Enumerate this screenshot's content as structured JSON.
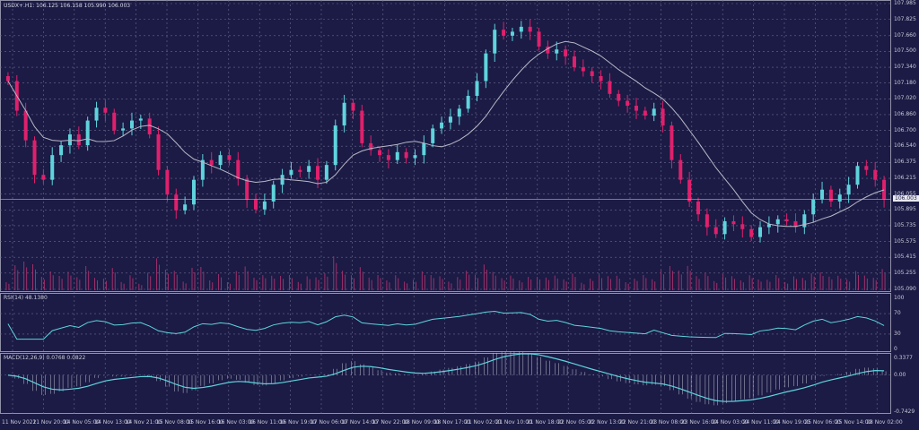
{
  "header": {
    "title": "USDX+.H1: 106.125 106.158 105.990 106.003"
  },
  "colors": {
    "background": "#1b1b45",
    "bull": "#5fd3dc",
    "bear": "#e0206c",
    "grid": "#6a6a90",
    "ma": "#b8b8c8",
    "indicator": "#5fd3dc"
  },
  "chart_data": [
    {
      "type": "candlestick",
      "symbol": "USDX+",
      "timeframe": "H1",
      "current_price": "106.003",
      "ylim": [
        105.09,
        107.985
      ],
      "y_ticks": [
        "107.985",
        "107.825",
        "107.660",
        "107.500",
        "107.340",
        "107.180",
        "107.020",
        "106.860",
        "106.700",
        "106.540",
        "106.375",
        "106.215",
        "106.055",
        "105.895",
        "105.735",
        "105.575",
        "105.415",
        "105.255",
        "105.090"
      ],
      "x_ticks": [
        "11 Nov 2022",
        "11 Nov 20:00",
        "14 Nov 05:00",
        "14 Nov 13:00",
        "14 Nov 21:00",
        "15 Nov 08:00",
        "15 Nov 16:00",
        "16 Nov 03:00",
        "16 Nov 11:00",
        "16 Nov 19:00",
        "17 Nov 06:00",
        "17 Nov 14:00",
        "17 Nov 22:00",
        "18 Nov 09:00",
        "18 Nov 17:00",
        "21 Nov 02:00",
        "21 Nov 10:00",
        "21 Nov 18:00",
        "22 Nov 05:00",
        "22 Nov 13:00",
        "22 Nov 21:00",
        "23 Nov 08:00",
        "23 Nov 16:00",
        "24 Nov 03:00",
        "24 Nov 11:00",
        "24 Nov 19:00",
        "25 Nov 06:00",
        "25 Nov 14:00",
        "28 Nov 02:00"
      ],
      "close": [
        107.2,
        106.9,
        106.6,
        106.25,
        106.2,
        106.45,
        106.55,
        106.66,
        106.55,
        106.8,
        106.93,
        106.88,
        106.7,
        106.72,
        106.8,
        106.82,
        106.66,
        106.3,
        106.05,
        105.89,
        105.95,
        106.2,
        106.4,
        106.35,
        106.45,
        106.4,
        106.21,
        106.0,
        105.9,
        105.98,
        106.15,
        106.25,
        106.3,
        106.28,
        106.34,
        106.2,
        106.35,
        106.75,
        106.98,
        106.9,
        106.57,
        106.5,
        106.45,
        106.4,
        106.48,
        106.42,
        106.45,
        106.57,
        106.72,
        106.78,
        106.84,
        106.92,
        107.05,
        107.2,
        107.48,
        107.72,
        107.66,
        107.7,
        107.75,
        107.7,
        107.55,
        107.48,
        107.52,
        107.45,
        107.34,
        107.3,
        107.25,
        107.2,
        107.07,
        107.0,
        106.95,
        106.9,
        106.85,
        106.92,
        106.75,
        106.4,
        106.2,
        105.98,
        105.85,
        105.72,
        105.65,
        105.78,
        105.75,
        105.7,
        105.62,
        105.72,
        105.75,
        105.8,
        105.78,
        105.72,
        105.85,
        106.0,
        106.1,
        105.98,
        106.05,
        106.15,
        106.34,
        106.3,
        106.2,
        106.003
      ],
      "grid": true
    },
    {
      "type": "line",
      "title": "RSI(14) 48.1380",
      "ylim": [
        0,
        100
      ],
      "y_ticks": [
        "100",
        "70",
        "30",
        "0"
      ]
    },
    {
      "type": "bar+line",
      "title": "MACD(12,26,9) 0.0768 0.0822",
      "y_ticks": [
        "0.3377",
        "0.00",
        "-0.7429"
      ]
    }
  ]
}
